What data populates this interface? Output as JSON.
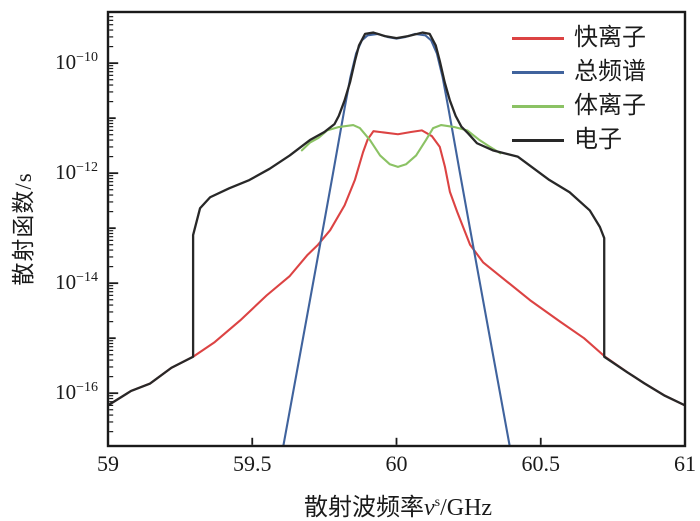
{
  "chart_data": {
    "type": "line",
    "title": "",
    "ylabel": "散射函数/s",
    "xlabel_parts": {
      "prefix": "散射波频率",
      "symbol": "ν",
      "sup": "s",
      "suffix": "/GHz"
    },
    "xlim": [
      59,
      61
    ],
    "ylog_range": [
      -16.96,
      -9.07
    ],
    "grid": false,
    "legend_position": "upper right",
    "xticks": [
      {
        "value": 59,
        "label": "59"
      },
      {
        "value": 59.5,
        "label": "59.5"
      },
      {
        "value": 60,
        "label": "60"
      },
      {
        "value": 60.5,
        "label": "60.5"
      },
      {
        "value": 61,
        "label": "61"
      }
    ],
    "yticks": [
      {
        "exp": -10,
        "label_base": "10",
        "label_exp": "−10"
      },
      {
        "exp": -12,
        "label_base": "10",
        "label_exp": "−12"
      },
      {
        "exp": -14,
        "label_base": "10",
        "label_exp": "−14"
      },
      {
        "exp": -16,
        "label_base": "10",
        "label_exp": "−16"
      }
    ],
    "series": [
      {
        "name": "快离子",
        "color": "#dc4343",
        "points": [
          [
            59.0,
            6e-17
          ],
          [
            59.08,
            1.1e-16
          ],
          [
            59.146,
            1.5e-16
          ],
          [
            59.22,
            2.9e-16
          ],
          [
            59.295,
            4.6e-16
          ],
          [
            59.37,
            8.5e-16
          ],
          [
            59.458,
            2.1e-15
          ],
          [
            59.55,
            6e-15
          ],
          [
            59.63,
            1.35e-14
          ],
          [
            59.69,
            3.2e-14
          ],
          [
            59.728,
            5e-14
          ],
          [
            59.77,
            9.2e-14
          ],
          [
            59.82,
            2.6e-13
          ],
          [
            59.856,
            7.6e-13
          ],
          [
            59.884,
            2.4e-12
          ],
          [
            59.9,
            4.1e-12
          ],
          [
            59.92,
            5.8e-12
          ],
          [
            59.955,
            5.5e-12
          ],
          [
            60.005,
            5.1e-12
          ],
          [
            60.05,
            5.6e-12
          ],
          [
            60.088,
            6e-12
          ],
          [
            60.123,
            4.7e-12
          ],
          [
            60.15,
            3e-12
          ],
          [
            60.168,
            1.3e-12
          ],
          [
            60.185,
            4.6e-13
          ],
          [
            60.21,
            2e-13
          ],
          [
            60.255,
            5e-14
          ],
          [
            60.3,
            2.4e-14
          ],
          [
            60.359,
            1.35e-14
          ],
          [
            60.463,
            4.9e-15
          ],
          [
            60.567,
            2e-15
          ],
          [
            60.65,
            1e-15
          ],
          [
            60.723,
            4.6e-16
          ],
          [
            60.8,
            2.4e-16
          ],
          [
            60.86,
            1.5e-16
          ],
          [
            60.93,
            9e-17
          ],
          [
            61.0,
            6e-17
          ]
        ]
      },
      {
        "name": "总频谱",
        "color": "#40639d",
        "points": [
          [
            59.607,
            1.05e-17
          ],
          [
            59.65,
            1.8e-16
          ],
          [
            59.7,
            4.9e-15
          ],
          [
            59.75,
            1.35e-13
          ],
          [
            59.78,
            1e-12
          ],
          [
            59.8,
            3.9e-12
          ],
          [
            59.82,
            1.5e-11
          ],
          [
            59.84,
            5.5e-11
          ],
          [
            59.86,
            1.5e-10
          ],
          [
            59.88,
            2.6e-10
          ],
          [
            59.9,
            3.2e-10
          ],
          [
            59.935,
            3.4e-10
          ],
          [
            59.968,
            3e-10
          ],
          [
            60.0,
            2.8e-10
          ],
          [
            60.032,
            3e-10
          ],
          [
            60.065,
            3.4e-10
          ],
          [
            60.1,
            3.2e-10
          ],
          [
            60.12,
            2.6e-10
          ],
          [
            60.14,
            1.5e-10
          ],
          [
            60.16,
            5.5e-11
          ],
          [
            60.18,
            1.5e-11
          ],
          [
            60.2,
            3.9e-12
          ],
          [
            60.22,
            1e-12
          ],
          [
            60.25,
            1.35e-13
          ],
          [
            60.3,
            4.9e-15
          ],
          [
            60.35,
            1.8e-16
          ],
          [
            60.393,
            1.05e-17
          ]
        ]
      },
      {
        "name": "体离子",
        "color": "#8bc264",
        "points": [
          [
            59.672,
            2.6e-12
          ],
          [
            59.7,
            3.6e-12
          ],
          [
            59.73,
            4.4e-12
          ],
          [
            59.76,
            6e-12
          ],
          [
            59.8,
            6.9e-12
          ],
          [
            59.85,
            7.5e-12
          ],
          [
            59.873,
            6.6e-12
          ],
          [
            59.908,
            4e-12
          ],
          [
            59.943,
            2.1e-12
          ],
          [
            59.977,
            1.45e-12
          ],
          [
            60.005,
            1.3e-12
          ],
          [
            60.033,
            1.45e-12
          ],
          [
            60.068,
            2.1e-12
          ],
          [
            60.102,
            4e-12
          ],
          [
            60.127,
            6.6e-12
          ],
          [
            60.155,
            7.5e-12
          ],
          [
            60.2,
            6.9e-12
          ],
          [
            60.245,
            6e-12
          ],
          [
            60.285,
            4.1e-12
          ],
          [
            60.32,
            3.1e-12
          ],
          [
            60.36,
            2.3e-12
          ]
        ]
      },
      {
        "name": "电子",
        "color": "#282828",
        "points": [
          [
            59.0,
            6e-17
          ],
          [
            59.08,
            1.1e-16
          ],
          [
            59.146,
            1.5e-16
          ],
          [
            59.22,
            2.9e-16
          ],
          [
            59.295,
            4.6e-16
          ],
          [
            59.295,
            7.5e-14
          ],
          [
            59.319,
            2.3e-13
          ],
          [
            59.354,
            3.65e-13
          ],
          [
            59.42,
            5.3e-13
          ],
          [
            59.49,
            7.5e-13
          ],
          [
            59.56,
            1.2e-12
          ],
          [
            59.63,
            2.1e-12
          ],
          [
            59.7,
            4e-12
          ],
          [
            59.75,
            5.6e-12
          ],
          [
            59.785,
            7.8e-12
          ],
          [
            59.8,
            1.1e-11
          ],
          [
            59.82,
            2.1e-11
          ],
          [
            59.839,
            4.5e-11
          ],
          [
            59.856,
            1.1e-10
          ],
          [
            59.87,
            2.1e-10
          ],
          [
            59.891,
            3.4e-10
          ],
          [
            59.92,
            3.6e-10
          ],
          [
            59.96,
            3.1e-10
          ],
          [
            60.0,
            2.85e-10
          ],
          [
            60.04,
            3.1e-10
          ],
          [
            60.09,
            3.6e-10
          ],
          [
            60.115,
            3.4e-10
          ],
          [
            60.136,
            2.1e-10
          ],
          [
            60.15,
            1.1e-10
          ],
          [
            60.167,
            4.5e-11
          ],
          [
            60.185,
            2.1e-11
          ],
          [
            60.205,
            1.1e-11
          ],
          [
            60.225,
            7e-12
          ],
          [
            60.248,
            5.3e-12
          ],
          [
            60.279,
            3.5e-12
          ],
          [
            60.334,
            2.6e-12
          ],
          [
            60.42,
            2e-12
          ],
          [
            60.53,
            7.5e-13
          ],
          [
            60.6,
            4.5e-13
          ],
          [
            60.67,
            2.1e-13
          ],
          [
            60.705,
            1.05e-13
          ],
          [
            60.72,
            6.6e-14
          ],
          [
            60.72,
            4.6e-16
          ],
          [
            60.8,
            2.4e-16
          ],
          [
            60.86,
            1.5e-16
          ],
          [
            60.93,
            9e-17
          ],
          [
            61.0,
            6e-17
          ]
        ]
      }
    ]
  }
}
